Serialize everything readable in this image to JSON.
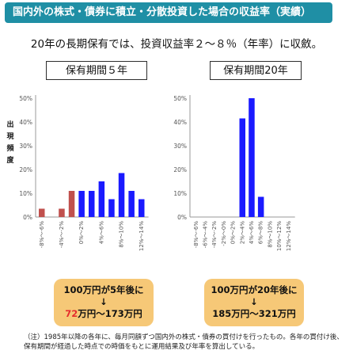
{
  "header": {
    "title": "国内外の株式・債券に積立・分散投資した場合の収益率（実績）",
    "subtitle": "20年の長期保有では、投資収益率２～８％（年率）に収斂。"
  },
  "colors": {
    "banner": "#1f8fa5",
    "negative_bar": "#c0504d",
    "positive_bar": "#1a1aff",
    "result_box": "#f6c877",
    "highlight_text": "#e52d2d"
  },
  "chart_data": [
    {
      "type": "bar",
      "title": "保有期間５年",
      "ylabel": "出現頻度",
      "ylim": [
        0,
        50
      ],
      "yticks": [
        "0%",
        "10%",
        "20%",
        "30%",
        "40%",
        "50%"
      ],
      "tick_labels": [
        "-8%～-6%",
        "-4%～-2%",
        "0%～2%",
        "4%～6%",
        "8%～10%",
        "12%～14%"
      ],
      "bin_starts": [
        -8,
        -6,
        -4,
        -2,
        0,
        2,
        4,
        6,
        8,
        10,
        12
      ],
      "values": [
        3.5,
        0,
        3.5,
        11,
        11,
        11,
        15,
        7.5,
        18.5,
        11,
        7.5
      ],
      "grid": false
    },
    {
      "type": "bar",
      "title": "保有期間20年",
      "ylabel": "",
      "ylim": [
        0,
        50
      ],
      "yticks": [
        "0%",
        "10%",
        "20%",
        "30%",
        "40%",
        "50%"
      ],
      "tick_labels": [
        "-8%～-6%",
        "-6%～-4%",
        "-4%～-2%",
        "-2%～0%",
        "0%～2%",
        "2%～4%",
        "4%～6%",
        "6%～8%",
        "8%～10%",
        "10%～12%",
        "12%～14%"
      ],
      "bin_starts": [
        -8,
        -6,
        -4,
        -2,
        0,
        2,
        4,
        6,
        8,
        10,
        12
      ],
      "values": [
        0,
        0,
        0,
        0,
        0,
        41.5,
        50,
        8.5,
        0,
        0,
        0
      ],
      "grid": false
    }
  ],
  "results": {
    "five_year": {
      "line1": "100万円が5年後に",
      "arrow": "↓",
      "low": "72",
      "range_rest": "万円～173万円"
    },
    "twenty_year": {
      "line1": "100万円が20年後に",
      "arrow": "↓",
      "range": "185万円～321万円"
    }
  },
  "note": "（注）1985年以降の各年に、毎月同額ずつ国内外の株式・債券の買付けを行ったもの。各年の買付け後、保有期間が経過した時点での時価をもとに運用結果及び年率を算出している。"
}
